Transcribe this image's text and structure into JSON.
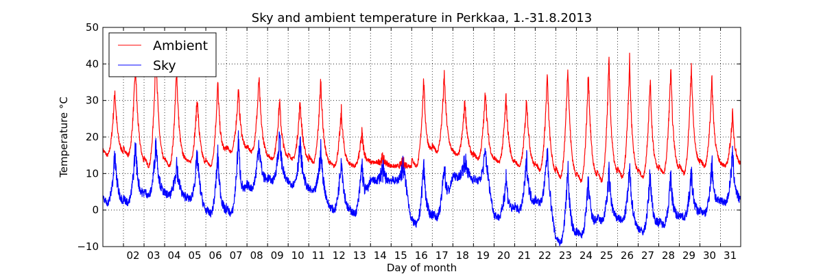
{
  "chart_data": {
    "type": "line",
    "title": "Sky and ambient temperature in Perkkaa, 1.-31.8.2013",
    "xlabel": "Day of month",
    "ylabel": "Temperature °C",
    "xlim": [
      1.0,
      31.98
    ],
    "ylim": [
      -10,
      50
    ],
    "yticks": [
      -10,
      0,
      10,
      20,
      30,
      40,
      50
    ],
    "xticks": [
      2,
      3,
      4,
      5,
      6,
      7,
      8,
      9,
      10,
      11,
      12,
      13,
      14,
      15,
      16,
      17,
      18,
      19,
      20,
      21,
      22,
      23,
      24,
      25,
      26,
      27,
      28,
      29,
      30,
      31
    ],
    "xtick_labels": [
      "02",
      "03",
      "04",
      "05",
      "06",
      "07",
      "08",
      "09",
      "10",
      "11",
      "12",
      "13",
      "14",
      "15",
      "16",
      "17",
      "18",
      "19",
      "20",
      "21",
      "22",
      "23",
      "24",
      "25",
      "26",
      "27",
      "28",
      "29",
      "30",
      "31"
    ],
    "grid": true,
    "grid_style": "dotted",
    "legend_position": "top-left",
    "day_peak_hour": 14,
    "series": [
      {
        "name": "Ambient",
        "color": "#ff0000",
        "daily_min": [
          15,
          15,
          12,
          12,
          13,
          12,
          16,
          16,
          14,
          14,
          13,
          12,
          12,
          13,
          12,
          12,
          16,
          15,
          14,
          13,
          12,
          11,
          9,
          8,
          8,
          9,
          9,
          10,
          10,
          12,
          12
        ],
        "daily_max": [
          33,
          40,
          45,
          39,
          31,
          35,
          33,
          36,
          30,
          30,
          36,
          27,
          21,
          14,
          13,
          36,
          37,
          30,
          33,
          31,
          31,
          37,
          40,
          38,
          41,
          41,
          36,
          39,
          40,
          36,
          26
        ]
      },
      {
        "name": "Sky",
        "color": "#0000ff",
        "daily_min": [
          2,
          2,
          4,
          4,
          3,
          -1,
          -1,
          6,
          8,
          7,
          5,
          0,
          -1,
          8,
          8,
          -4,
          -2,
          9,
          8,
          -2,
          0,
          2,
          -9,
          -7,
          -3,
          -3,
          -6,
          -4,
          -2,
          -1,
          2
        ],
        "daily_max": [
          15,
          18,
          19,
          13,
          15,
          15,
          20,
          19,
          20,
          18,
          16,
          15,
          13,
          11,
          12,
          13,
          13,
          14,
          16,
          9,
          14,
          16,
          12,
          8,
          10,
          11,
          10,
          9,
          10,
          13,
          15
        ]
      }
    ]
  }
}
